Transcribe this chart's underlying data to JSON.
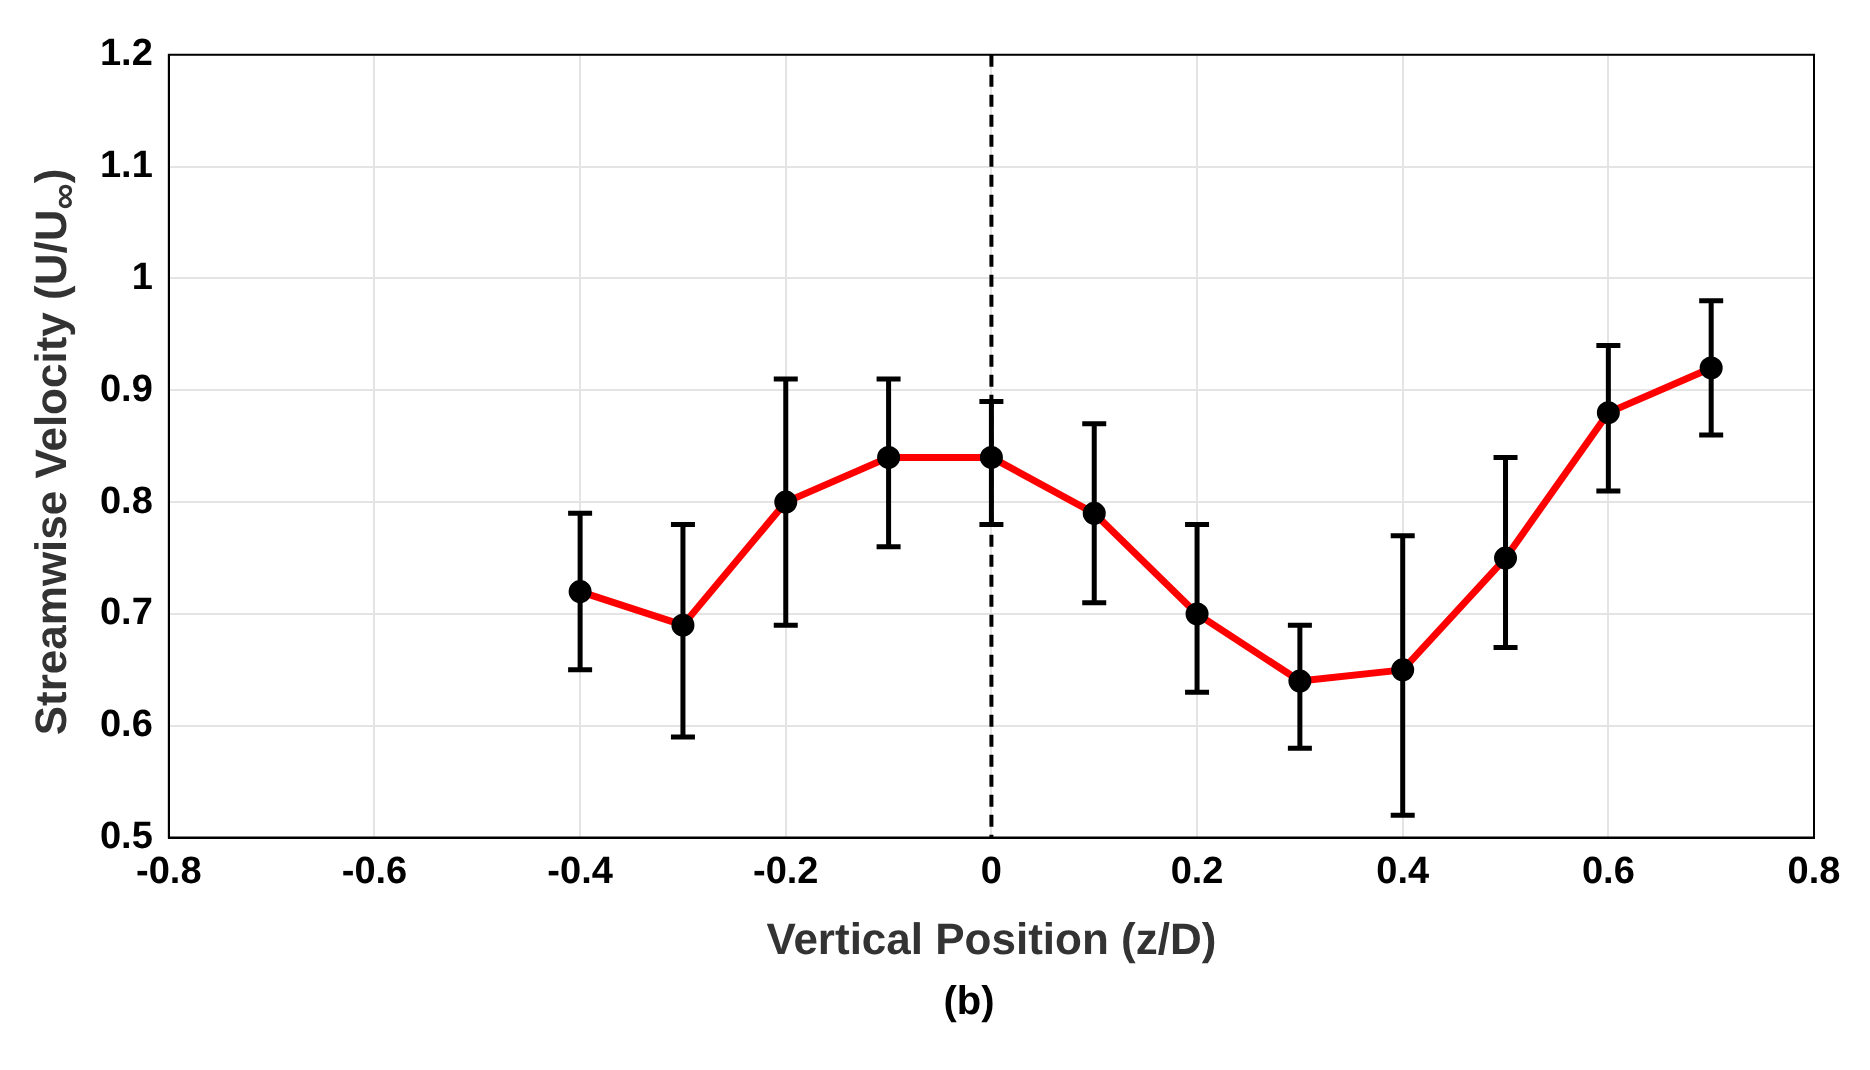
{
  "chart_data": {
    "type": "line",
    "xlabel": "Vertical Position (z/D)",
    "ylabel": "Streamwise Velocity (U/U$_{∞}$)",
    "annotations": [
      "(b)"
    ],
    "x": [
      -0.4,
      -0.3,
      -0.2,
      -0.1,
      0,
      0.1,
      0.2,
      0.3,
      0.4,
      0.5,
      0.6,
      0.7
    ],
    "series": [
      {
        "color": "#ff0000",
        "values": [
          0.72,
          0.69,
          0.8,
          0.84,
          0.84,
          0.79,
          0.7,
          0.64,
          0.65,
          0.75,
          0.88,
          0.92
        ],
        "errors": [
          [
            0.65,
            0.79
          ],
          [
            0.59,
            0.78
          ],
          [
            0.69,
            0.91
          ],
          [
            0.76,
            0.91
          ],
          [
            0.78,
            0.89
          ],
          [
            0.71,
            0.87
          ],
          [
            0.63,
            0.78
          ],
          [
            0.58,
            0.69
          ],
          [
            0.52,
            0.77
          ],
          [
            0.67,
            0.84
          ],
          [
            0.81,
            0.94
          ],
          [
            0.86,
            0.98
          ]
        ]
      }
    ],
    "xlim": [
      -0.8,
      0.8
    ],
    "xticks": [
      -0.8,
      -0.6,
      -0.4,
      -0.2,
      0,
      0.2,
      0.4,
      0.6,
      0.8
    ],
    "ylim": [
      0.5,
      1.2
    ],
    "yticks": [
      0.5,
      0.6,
      0.7,
      0.8,
      0.9,
      1,
      1.1,
      1.2
    ],
    "ref_lines": [
      {
        "axis": "x",
        "value": 0,
        "color": "#000000",
        "line_style": "dashed"
      }
    ],
    "grid": true,
    "legend": false,
    "marker": "circle",
    "line_style": "solid"
  }
}
